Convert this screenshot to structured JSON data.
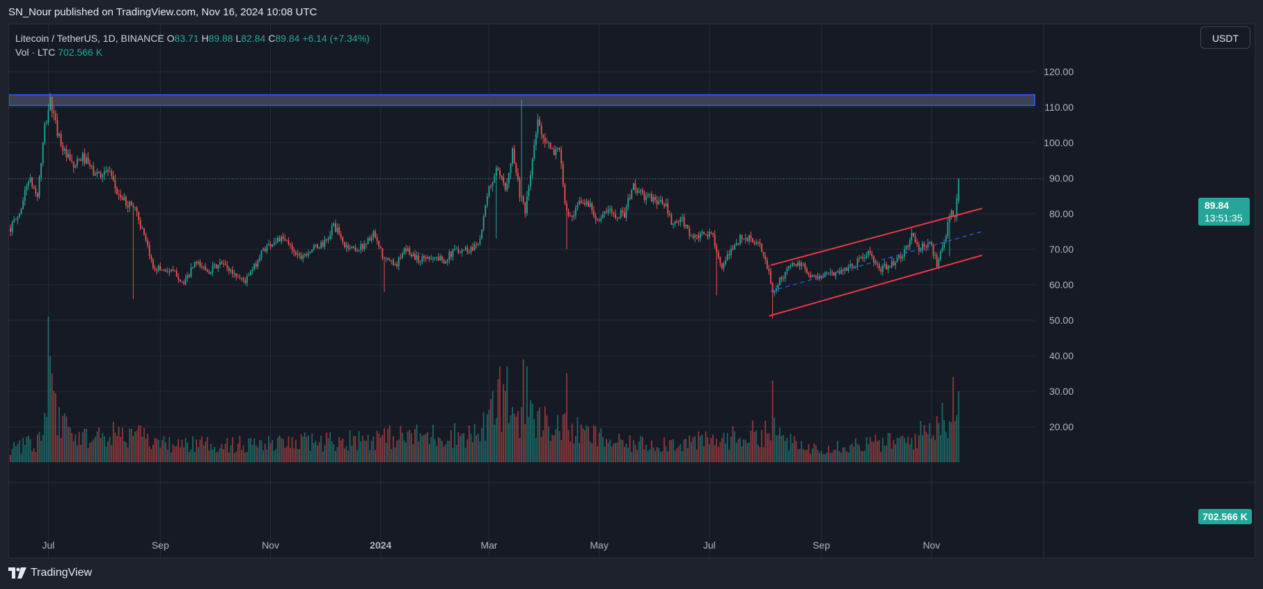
{
  "header": {
    "published_by": "SN_Nour published on TradingView.com, Nov 16, 2024 10:08 UTC"
  },
  "legend": {
    "symbol": "Litecoin / TetherUS, 1D, BINANCE",
    "o_label": "O",
    "o_value": "83.71",
    "h_label": "H",
    "h_value": "89.88",
    "l_label": "L",
    "l_value": "82.84",
    "c_label": "C",
    "c_value": "89.84",
    "change": "+6.14 (+7.34%)",
    "vol_label": "Vol · LTC",
    "vol_value": "702.566 K"
  },
  "toolbar": {
    "currency_label": "USDT"
  },
  "price_tag": {
    "price": "89.84",
    "countdown": "13:51:35"
  },
  "volume_tag": {
    "value": "702.566 K"
  },
  "footer": {
    "brand": "TradingView"
  },
  "colors": {
    "up": "#26a69a",
    "down": "#ef5350",
    "channel": "#f23645",
    "midline": "#2962ff",
    "zone_fill": "#434a5c",
    "zone_border": "#2962ff",
    "background": "#161a25",
    "grid": "#262b38"
  },
  "chart_data": {
    "type": "candlestick",
    "symbol": "LTC/USDT",
    "timeframe": "1D",
    "exchange": "BINANCE",
    "y_axis": {
      "ticks": [
        "120.00",
        "110.00",
        "100.00",
        "90.00",
        "80.00",
        "70.00",
        "60.00",
        "50.00",
        "40.00",
        "30.00",
        "20.00"
      ],
      "range": [
        16.4,
        125
      ]
    },
    "x_axis": {
      "ticks": [
        "Jul",
        "Sep",
        "Nov",
        "2024",
        "Mar",
        "May",
        "Jul",
        "Sep",
        "Nov"
      ],
      "tick_dates": [
        "2023-07-01",
        "2023-09-01",
        "2023-11-01",
        "2024-01-01",
        "2024-03-01",
        "2024-05-01",
        "2024-07-01",
        "2024-09-01",
        "2024-11-01"
      ],
      "range": [
        "2023-06-10",
        "2024-12-20"
      ]
    },
    "price_anchors": [
      [
        "2023-06-10",
        76
      ],
      [
        "2023-06-15",
        80
      ],
      [
        "2023-06-20",
        90
      ],
      [
        "2023-06-25",
        85
      ],
      [
        "2023-06-29",
        104
      ],
      [
        "2023-07-02",
        112
      ],
      [
        "2023-07-05",
        105
      ],
      [
        "2023-07-10",
        97
      ],
      [
        "2023-07-15",
        93
      ],
      [
        "2023-07-20",
        96
      ],
      [
        "2023-07-27",
        91
      ],
      [
        "2023-08-03",
        92
      ],
      [
        "2023-08-08",
        86
      ],
      [
        "2023-08-13",
        83
      ],
      [
        "2023-08-18",
        82
      ],
      [
        "2023-08-22",
        75
      ],
      [
        "2023-08-28",
        65
      ],
      [
        "2023-09-05",
        64
      ],
      [
        "2023-09-10",
        63
      ],
      [
        "2023-09-14",
        60
      ],
      [
        "2023-09-20",
        66
      ],
      [
        "2023-09-28",
        64
      ],
      [
        "2023-10-05",
        66
      ],
      [
        "2023-10-12",
        63
      ],
      [
        "2023-10-18",
        61
      ],
      [
        "2023-10-23",
        65
      ],
      [
        "2023-10-28",
        70
      ],
      [
        "2023-11-05",
        73
      ],
      [
        "2023-11-10",
        72
      ],
      [
        "2023-11-17",
        68
      ],
      [
        "2023-11-24",
        70
      ],
      [
        "2023-12-02",
        72
      ],
      [
        "2023-12-06",
        77
      ],
      [
        "2023-12-12",
        71
      ],
      [
        "2023-12-20",
        70
      ],
      [
        "2023-12-28",
        74
      ],
      [
        "2024-01-03",
        67
      ],
      [
        "2024-01-10",
        66
      ],
      [
        "2024-01-15",
        70
      ],
      [
        "2024-01-22",
        67
      ],
      [
        "2024-01-28",
        68
      ],
      [
        "2024-02-05",
        67
      ],
      [
        "2024-02-12",
        70
      ],
      [
        "2024-02-20",
        70
      ],
      [
        "2024-02-25",
        73
      ],
      [
        "2024-03-01",
        87
      ],
      [
        "2024-03-05",
        92
      ],
      [
        "2024-03-10",
        87
      ],
      [
        "2024-03-14",
        98
      ],
      [
        "2024-03-18",
        86
      ],
      [
        "2024-03-21",
        80
      ],
      [
        "2024-03-25",
        95
      ],
      [
        "2024-03-28",
        106
      ],
      [
        "2024-04-01",
        101
      ],
      [
        "2024-04-05",
        97
      ],
      [
        "2024-04-09",
        99
      ],
      [
        "2024-04-12",
        82
      ],
      [
        "2024-04-16",
        78
      ],
      [
        "2024-04-20",
        83
      ],
      [
        "2024-04-25",
        83
      ],
      [
        "2024-05-01",
        78
      ],
      [
        "2024-05-06",
        81
      ],
      [
        "2024-05-10",
        80
      ],
      [
        "2024-05-15",
        80
      ],
      [
        "2024-05-20",
        88
      ],
      [
        "2024-05-25",
        85
      ],
      [
        "2024-06-01",
        84
      ],
      [
        "2024-06-07",
        82
      ],
      [
        "2024-06-10",
        77
      ],
      [
        "2024-06-16",
        78
      ],
      [
        "2024-06-22",
        73
      ],
      [
        "2024-06-28",
        74
      ],
      [
        "2024-07-03",
        74
      ],
      [
        "2024-07-08",
        64
      ],
      [
        "2024-07-13",
        70
      ],
      [
        "2024-07-18",
        73
      ],
      [
        "2024-07-24",
        73
      ],
      [
        "2024-07-30",
        70
      ],
      [
        "2024-08-03",
        63
      ],
      [
        "2024-08-05",
        58
      ],
      [
        "2024-08-10",
        62
      ],
      [
        "2024-08-16",
        66
      ],
      [
        "2024-08-22",
        65
      ],
      [
        "2024-08-28",
        62
      ],
      [
        "2024-09-05",
        63
      ],
      [
        "2024-09-12",
        64
      ],
      [
        "2024-09-20",
        66
      ],
      [
        "2024-09-27",
        69
      ],
      [
        "2024-10-03",
        64
      ],
      [
        "2024-10-10",
        66
      ],
      [
        "2024-10-16",
        68
      ],
      [
        "2024-10-21",
        74
      ],
      [
        "2024-10-25",
        70
      ],
      [
        "2024-10-31",
        72
      ],
      [
        "2024-11-04",
        66
      ],
      [
        "2024-11-08",
        73
      ],
      [
        "2024-11-12",
        80
      ],
      [
        "2024-11-14",
        79
      ],
      [
        "2024-11-16",
        89.84
      ]
    ],
    "spikes": [
      {
        "date": "2023-07-02",
        "high": 114
      },
      {
        "date": "2023-08-17",
        "low": 56
      },
      {
        "date": "2024-01-03",
        "low": 58
      },
      {
        "date": "2024-03-19",
        "high": 112
      },
      {
        "date": "2024-03-05",
        "low": 73
      },
      {
        "date": "2024-04-13",
        "low": 70
      },
      {
        "date": "2024-07-05",
        "low": 57
      },
      {
        "date": "2024-08-05",
        "low": 50.5
      },
      {
        "date": "2024-11-11",
        "low": 68
      }
    ],
    "volume_scale": [
      0,
      41
    ],
    "volume_bases": [
      [
        "2023-06-10",
        4
      ],
      [
        "2023-06-28",
        6
      ],
      [
        "2023-07-01",
        22
      ],
      [
        "2023-07-06",
        12
      ],
      [
        "2023-07-20",
        7
      ],
      [
        "2023-08-15",
        8
      ],
      [
        "2023-09-01",
        5
      ],
      [
        "2023-11-01",
        5
      ],
      [
        "2024-01-03",
        7
      ],
      [
        "2024-02-25",
        8
      ],
      [
        "2024-03-05",
        16
      ],
      [
        "2024-03-20",
        13
      ],
      [
        "2024-04-15",
        9
      ],
      [
        "2024-05-15",
        5
      ],
      [
        "2024-07-05",
        6
      ],
      [
        "2024-08-05",
        9
      ],
      [
        "2024-08-20",
        4
      ],
      [
        "2024-10-20",
        6
      ],
      [
        "2024-11-10",
        13
      ],
      [
        "2024-11-16",
        11
      ]
    ],
    "volume_spikes": [
      {
        "date": "2023-07-01",
        "value": 41
      },
      {
        "date": "2023-07-03",
        "value": 25
      },
      {
        "date": "2024-03-07",
        "value": 27
      },
      {
        "date": "2024-03-11",
        "value": 27
      },
      {
        "date": "2024-03-20",
        "value": 29
      },
      {
        "date": "2024-03-22",
        "value": 27
      },
      {
        "date": "2024-04-13",
        "value": 25
      },
      {
        "date": "2024-08-05",
        "value": 23
      },
      {
        "date": "2024-11-13",
        "value": 24
      },
      {
        "date": "2024-11-16",
        "value": 20
      }
    ],
    "last_volume": "702.566 K",
    "last_price": 89.84,
    "resistance_zone": {
      "low": 110.5,
      "high": 113.5
    },
    "channel": {
      "upper": [
        [
          "2024-08-04",
          65.5
        ],
        [
          "2024-11-29",
          81.5
        ]
      ],
      "lower": [
        [
          "2024-08-03",
          51.2
        ],
        [
          "2024-11-29",
          68.3
        ]
      ],
      "mid": [
        [
          "2024-08-04",
          58.2
        ],
        [
          "2024-11-29",
          75
        ]
      ]
    }
  }
}
